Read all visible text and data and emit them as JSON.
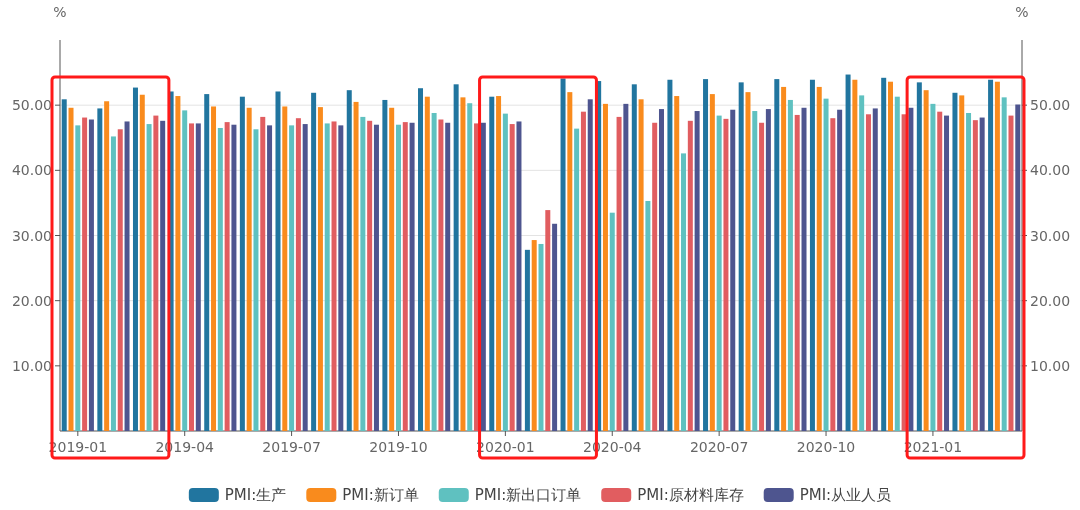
{
  "chart_data": {
    "type": "bar",
    "ylabel": "%",
    "y2label": "%",
    "categories": [
      "2019-01",
      null,
      null,
      "2019-04",
      null,
      null,
      "2019-07",
      null,
      null,
      "2019-10",
      null,
      null,
      "2020-01",
      null,
      null,
      "2020-04",
      null,
      null,
      "2020-07",
      null,
      null,
      "2020-10",
      null,
      null,
      "2021-01",
      null,
      null
    ],
    "series": [
      {
        "name": "PMI:生产",
        "color": "#21759f",
        "values": [
          50.9,
          49.5,
          52.7,
          52.1,
          51.7,
          51.3,
          52.1,
          51.9,
          52.3,
          50.8,
          52.6,
          53.2,
          51.3,
          27.8,
          54.1,
          53.7,
          53.2,
          53.9,
          54.0,
          53.5,
          54.0,
          53.9,
          54.7,
          54.2,
          53.5,
          51.9,
          53.9
        ]
      },
      {
        "name": "PMI:新订单",
        "color": "#f98b1d",
        "values": [
          49.6,
          50.6,
          51.6,
          51.4,
          49.8,
          49.6,
          49.8,
          49.7,
          50.5,
          49.6,
          51.3,
          51.2,
          51.4,
          29.3,
          52.0,
          50.2,
          50.9,
          51.4,
          51.7,
          52.0,
          52.8,
          52.8,
          53.9,
          53.6,
          52.3,
          51.5,
          53.6
        ]
      },
      {
        "name": "PMI:新出口订单",
        "color": "#5fc1c0",
        "values": [
          46.9,
          45.2,
          47.1,
          49.2,
          46.5,
          46.3,
          46.9,
          47.2,
          48.2,
          47.0,
          48.8,
          50.3,
          48.7,
          28.7,
          46.4,
          33.5,
          35.3,
          42.6,
          48.4,
          49.1,
          50.8,
          51.0,
          51.5,
          51.3,
          50.2,
          48.8,
          51.2
        ]
      },
      {
        "name": "PMI:原材料库存",
        "color": "#e15d60",
        "values": [
          48.1,
          46.3,
          48.4,
          47.2,
          47.4,
          48.2,
          48.0,
          47.5,
          47.6,
          47.4,
          47.8,
          47.2,
          47.1,
          33.9,
          49.0,
          48.2,
          47.3,
          47.6,
          47.9,
          47.3,
          48.5,
          48.0,
          48.6,
          48.6,
          49.0,
          47.7,
          48.4
        ]
      },
      {
        "name": "PMI:从业人员",
        "color": "#4e558f",
        "values": [
          47.8,
          47.5,
          47.6,
          47.2,
          47.0,
          46.9,
          47.1,
          46.9,
          47.0,
          47.3,
          47.3,
          47.3,
          47.5,
          31.8,
          50.9,
          50.2,
          49.4,
          49.1,
          49.3,
          49.4,
          49.6,
          49.3,
          49.5,
          49.6,
          48.4,
          48.1,
          50.1
        ]
      }
    ],
    "ylim": [
      0,
      60
    ],
    "yticks": [
      {
        "value": 10,
        "label": "10.00"
      },
      {
        "value": 20,
        "label": "20.00"
      },
      {
        "value": 30,
        "label": "30.00"
      },
      {
        "value": 40,
        "label": "40.00"
      },
      {
        "value": 50,
        "label": "50.00"
      }
    ],
    "y2lim": [
      0,
      60
    ],
    "y2ticks": [
      {
        "value": 10,
        "label": "10.00"
      },
      {
        "value": 20,
        "label": "20.00"
      },
      {
        "value": 30,
        "label": "30.00"
      },
      {
        "value": 40,
        "label": "40.00"
      },
      {
        "value": 50,
        "label": "50.00"
      }
    ],
    "grid": "y",
    "legend": "bottom"
  }
}
